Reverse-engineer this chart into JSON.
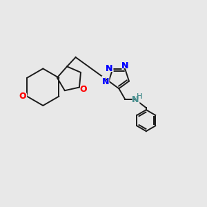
{
  "background_color": "#e8e8e8",
  "bond_color": "#1a1a1a",
  "N_color": "#0000ff",
  "O_color": "#ff0000",
  "NH_color": "#4a9090",
  "figsize": [
    3.0,
    3.0
  ],
  "dpi": 100,
  "xlim": [
    0,
    10
  ],
  "ylim": [
    0,
    10
  ],
  "lw": 1.4,
  "fontsize": 8.5
}
